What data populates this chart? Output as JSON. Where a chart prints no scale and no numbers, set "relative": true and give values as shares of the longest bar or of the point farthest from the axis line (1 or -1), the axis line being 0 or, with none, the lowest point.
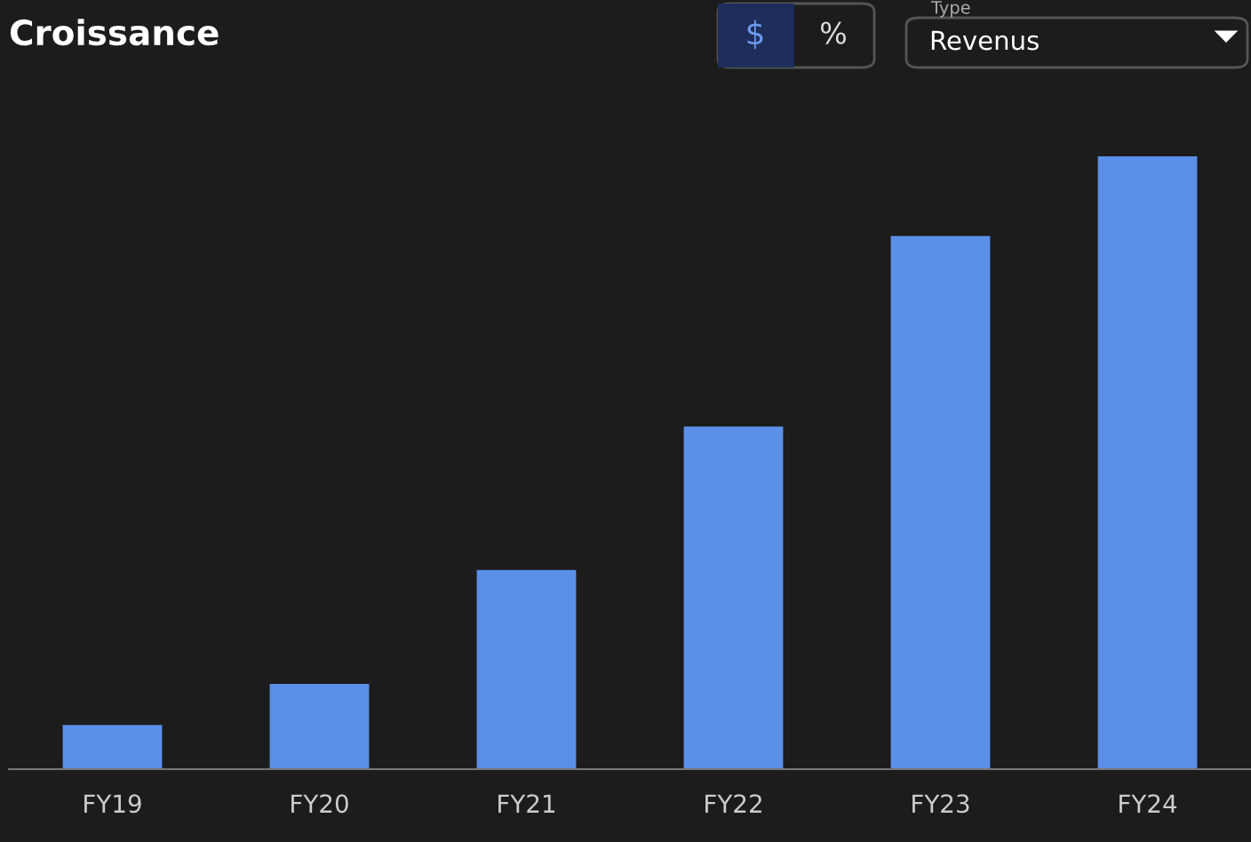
{
  "chart_data": {
    "type": "bar",
    "title": "Croissance",
    "relative": true,
    "categories": [
      "FY19",
      "FY20",
      "FY21",
      "FY22",
      "FY23",
      "FY24"
    ],
    "values": [
      0.072,
      0.139,
      0.325,
      0.559,
      0.87,
      1.0
    ],
    "color": "#5b8fe8",
    "annotations": [
      "$",
      "%",
      "Type",
      "Revenus"
    ]
  }
}
